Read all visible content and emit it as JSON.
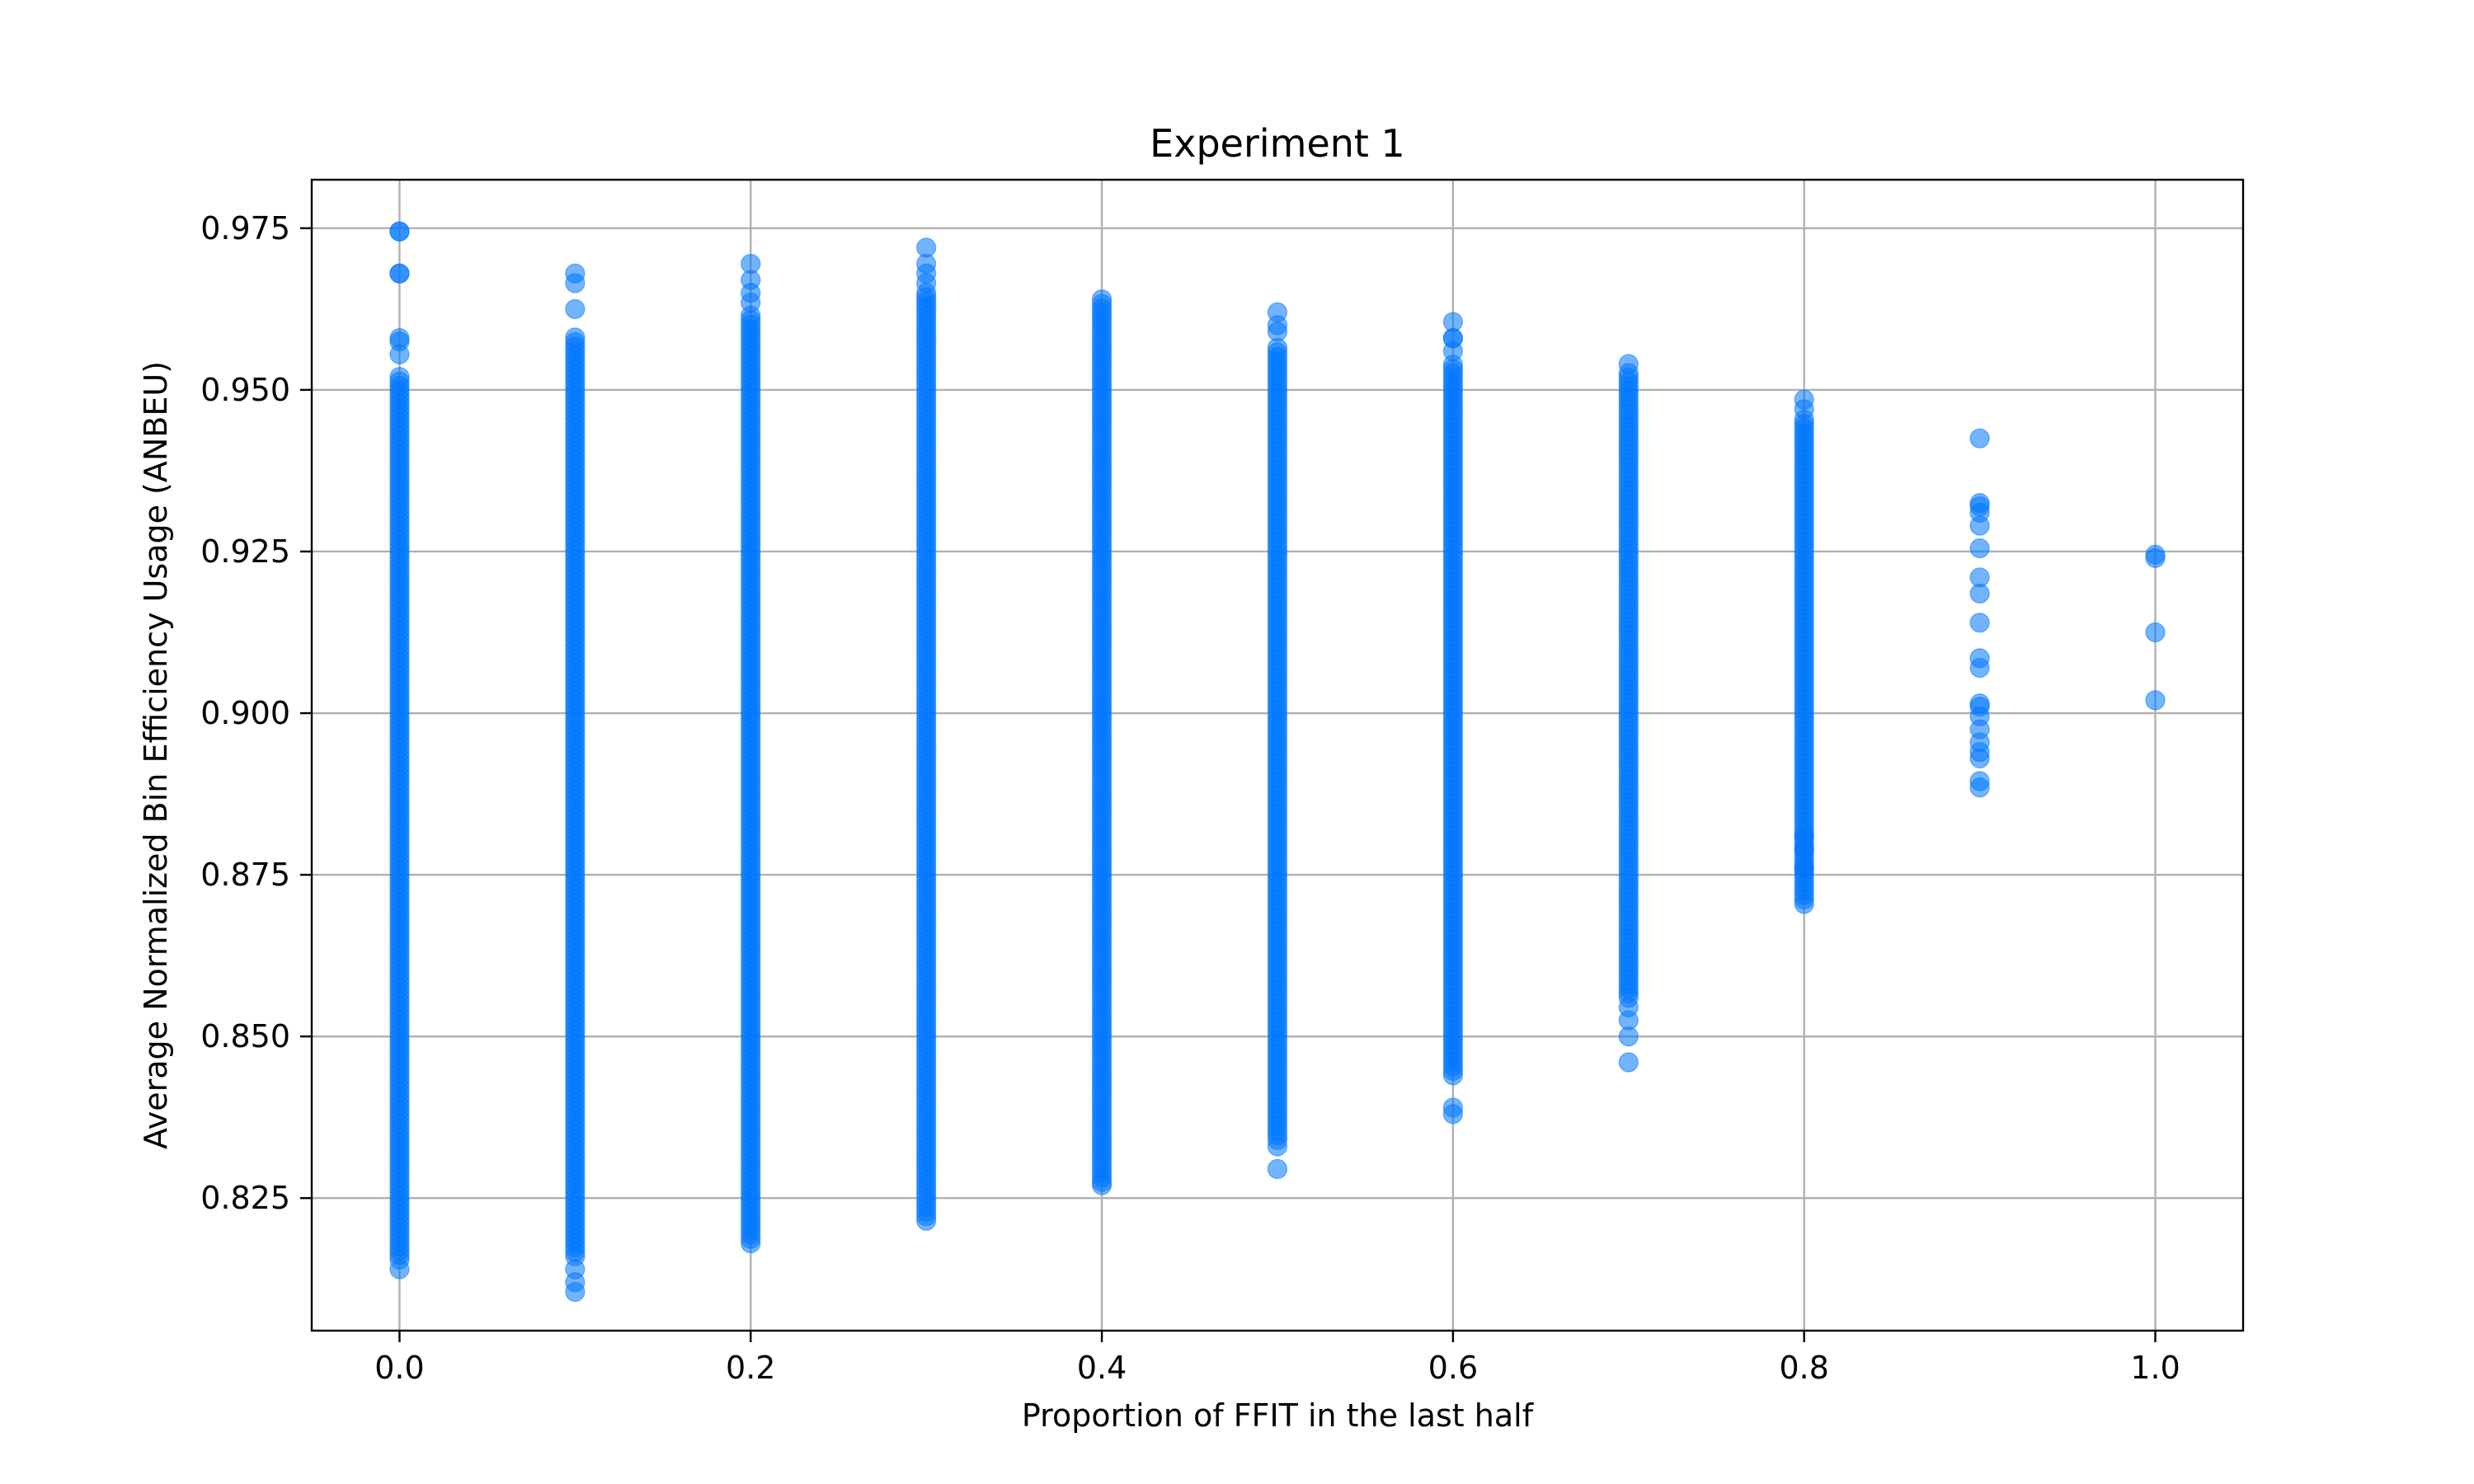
{
  "chart_data": {
    "type": "scatter",
    "title": "Experiment 1",
    "xlabel": "Proportion of FFIT in the last half",
    "ylabel": "Average Normalized Bin Efficiency Usage (ANBEU)",
    "xlim": [
      -0.05,
      1.05
    ],
    "ylim": [
      0.8045,
      0.9825
    ],
    "x_ticks": [
      "0.0",
      "0.2",
      "0.4",
      "0.6",
      "0.8",
      "1.0"
    ],
    "y_ticks": [
      "0.825",
      "0.850",
      "0.875",
      "0.900",
      "0.925",
      "0.950",
      "0.975"
    ],
    "grid": true,
    "marker_color": "#0077ff",
    "marker_alpha": 0.55,
    "groups": [
      {
        "x": 0.0,
        "min": 0.8155,
        "max": 0.952,
        "extra": [
          0.814,
          0.9555,
          0.9575,
          0.958,
          0.968,
          0.968,
          0.9745,
          0.9745
        ]
      },
      {
        "x": 0.1,
        "min": 0.816,
        "max": 0.9585,
        "extra": [
          0.8105,
          0.812,
          0.814,
          0.9625,
          0.9665,
          0.968
        ]
      },
      {
        "x": 0.2,
        "min": 0.818,
        "max": 0.962,
        "extra": [
          0.9635,
          0.965,
          0.967,
          0.9695
        ]
      },
      {
        "x": 0.3,
        "min": 0.8215,
        "max": 0.965,
        "extra": [
          0.9665,
          0.968,
          0.9695,
          0.972
        ]
      },
      {
        "x": 0.4,
        "min": 0.8275,
        "max": 0.964,
        "extra": [
          0.827
        ]
      },
      {
        "x": 0.5,
        "min": 0.834,
        "max": 0.957,
        "extra": [
          0.8295,
          0.833,
          0.959,
          0.96,
          0.962
        ]
      },
      {
        "x": 0.6,
        "min": 0.844,
        "max": 0.954,
        "extra": [
          0.838,
          0.839,
          0.956,
          0.958,
          0.958,
          0.9605
        ]
      },
      {
        "x": 0.7,
        "min": 0.856,
        "max": 0.953,
        "extra": [
          0.846,
          0.85,
          0.8525,
          0.8545,
          0.954
        ]
      },
      {
        "x": 0.8,
        "min": 0.8705,
        "max": 0.946,
        "extra": [
          0.876,
          0.879,
          0.881,
          0.947,
          0.9485
        ]
      },
      {
        "x": 0.9,
        "min": null,
        "max": null,
        "extra": [
          0.8885,
          0.8895,
          0.893,
          0.894,
          0.8955,
          0.8975,
          0.8995,
          0.901,
          0.9015,
          0.907,
          0.9085,
          0.914,
          0.9185,
          0.921,
          0.9255,
          0.929,
          0.931,
          0.932,
          0.9325,
          0.9425
        ]
      },
      {
        "x": 1.0,
        "min": null,
        "max": null,
        "extra": [
          0.902,
          0.9125,
          0.924,
          0.9245
        ]
      }
    ]
  }
}
